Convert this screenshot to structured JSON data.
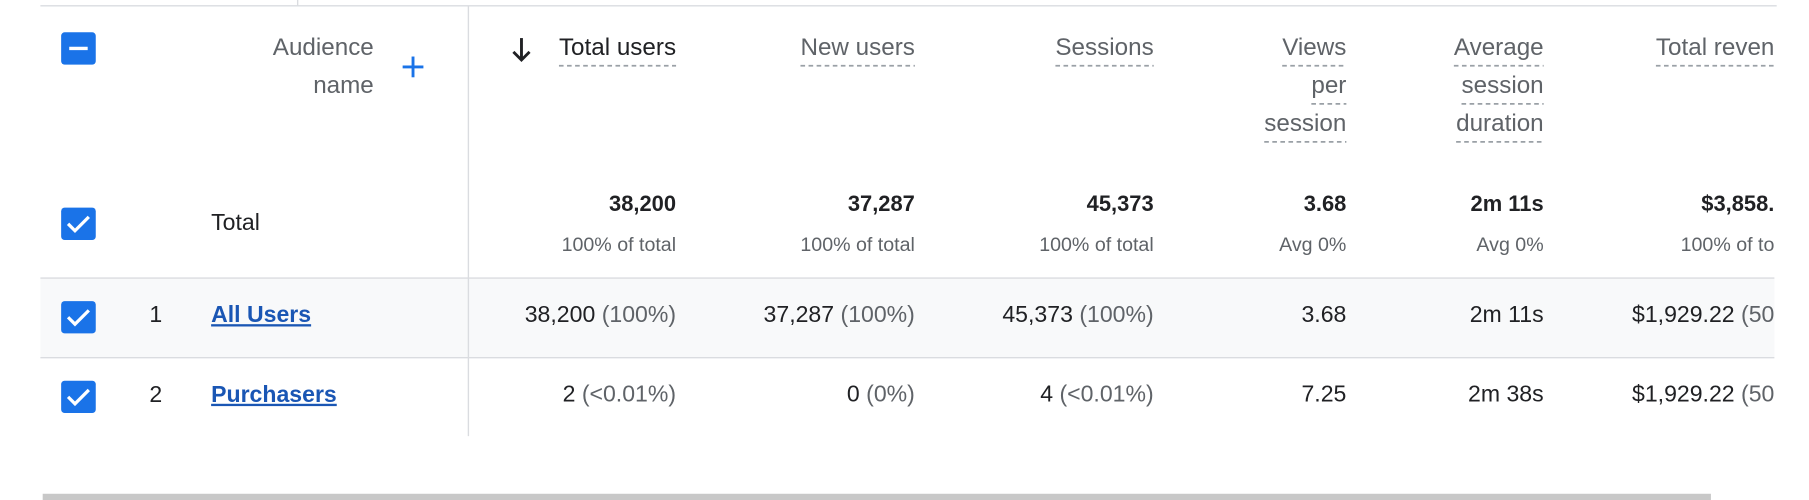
{
  "header": {
    "audience_name": [
      "Audience",
      "name"
    ]
  },
  "columns": [
    {
      "label": [
        "Total users"
      ],
      "right": 586
    },
    {
      "label": [
        "New users"
      ],
      "right": 793
    },
    {
      "label": [
        "Sessions"
      ],
      "right": 1000
    },
    {
      "label": [
        "Views",
        "per",
        "session"
      ],
      "right": 1167
    },
    {
      "label": [
        "Average",
        "session",
        "duration"
      ],
      "right": 1338
    },
    {
      "label": [
        "Total reven"
      ],
      "right": 1538
    }
  ],
  "total": {
    "label": "Total",
    "cells": [
      {
        "value": "38,200",
        "note": "100% of total"
      },
      {
        "value": "37,287",
        "note": "100% of total"
      },
      {
        "value": "45,373",
        "note": "100% of total"
      },
      {
        "value": "3.68",
        "note": "Avg 0%"
      },
      {
        "value": "2m 11s",
        "note": "Avg 0%"
      },
      {
        "value": "$3,858.",
        "note": "100% of to"
      }
    ]
  },
  "rows": [
    {
      "index": "1",
      "name": "All Users",
      "cells": [
        {
          "value": "38,200",
          "share": "(100%)"
        },
        {
          "value": "37,287",
          "share": "(100%)"
        },
        {
          "value": "45,373",
          "share": "(100%)"
        },
        {
          "value": "3.68"
        },
        {
          "value": "2m 11s"
        },
        {
          "value": "$1,929.22",
          "share": "(50"
        }
      ]
    },
    {
      "index": "2",
      "name": "Purchasers",
      "cells": [
        {
          "value": "2",
          "share": "(<0.01%)"
        },
        {
          "value": "0",
          "share": "(0%)"
        },
        {
          "value": "4",
          "share": "(<0.01%)"
        },
        {
          "value": "7.25"
        },
        {
          "value": "2m 38s"
        },
        {
          "value": "$1,929.22",
          "share": "(50"
        }
      ]
    }
  ]
}
